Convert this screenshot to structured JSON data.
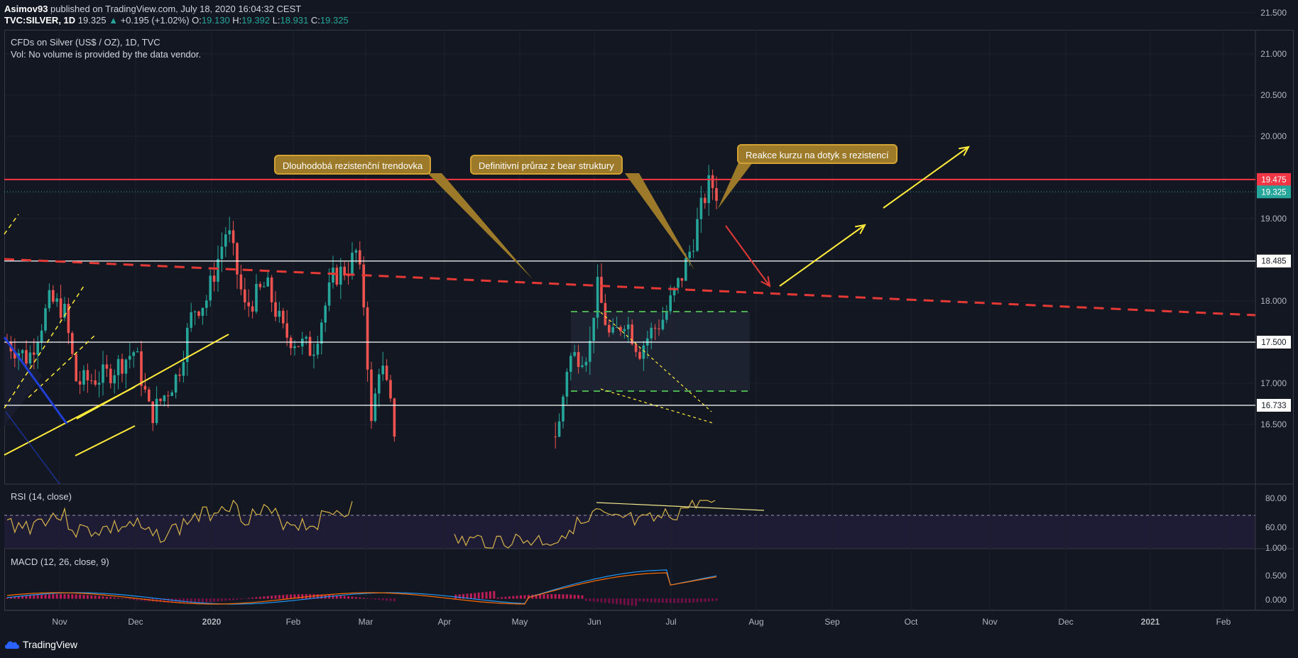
{
  "header": {
    "author": "Asimov93",
    "published": "published on TradingView.com, July 18, 2020 16:04:32 CEST",
    "symbol": "TVC:SILVER, 1D",
    "last": "19.325",
    "change": "+0.195 (+1.02%)",
    "ohlc": {
      "o_label": "O:",
      "o": "19.130",
      "h_label": "H:",
      "h": "19.392",
      "l_label": "L:",
      "l": "18.931",
      "c_label": "C:",
      "c": "19.325"
    }
  },
  "legend": {
    "title": "CFDs on Silver (US$ / OZ), 1D, TVC",
    "volume_note": "Vol: No volume is provided by the data vendor.",
    "rsi": "RSI (14, close)",
    "macd": "MACD (12, 26, close, 9)"
  },
  "price_axis": [
    "21.500",
    "21.000",
    "20.500",
    "20.000",
    "19.000",
    "18.000",
    "17.000",
    "16.500"
  ],
  "price_badges": [
    {
      "label": "19.475",
      "color": "#f23645",
      "text_color": "#ffffff"
    },
    {
      "label": "19.325",
      "color": "#26a69a",
      "text_color": "#ffffff"
    },
    {
      "label": "18.485",
      "color": "#ffffff",
      "text_color": "#131722"
    },
    {
      "label": "17.500",
      "color": "#ffffff",
      "text_color": "#131722"
    },
    {
      "label": "16.733",
      "color": "#ffffff",
      "text_color": "#131722"
    }
  ],
  "rsi_axis": [
    "80.00",
    "60.00",
    "1.000"
  ],
  "macd_axis": [
    "0.500",
    "0.000"
  ],
  "time_axis": [
    "Nov",
    "Dec",
    "2020",
    "Feb",
    "Mar",
    "Apr",
    "May",
    "Jun",
    "Jul",
    "Aug",
    "Sep",
    "Oct",
    "Nov",
    "Dec",
    "2021",
    "Feb"
  ],
  "callouts": {
    "resistance": "Dlouhodobá rezistenční trendovka",
    "breakout": "Definitivní průraz z bear struktury",
    "reaction": "Reakce kurzu na dotyk s rezistencí"
  },
  "footer": {
    "brand": "TradingView"
  },
  "colors": {
    "bg": "#131722",
    "up": "#26a69a",
    "down": "#ef5350",
    "resistance": "#f23645",
    "callout": "#9c7a2a",
    "yellow": "#ffeb3b",
    "rsi": "#d5b34a",
    "macd": "#2196f3",
    "signal": "#ff6d00"
  }
}
